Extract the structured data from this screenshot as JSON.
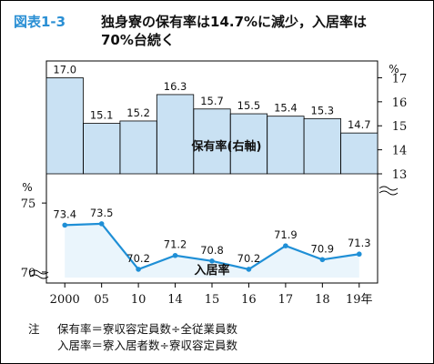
{
  "title": {
    "label": "図表1-3",
    "line1": "独身寮の保有率は14.7%に減少，入居率は",
    "line2": "70%台続く"
  },
  "chart_data": [
    {
      "type": "bar",
      "name": "保有率",
      "label": "保有率(右軸)",
      "axis": "right",
      "unit": "%",
      "ylim": [
        13,
        17.7
      ],
      "yticks": [
        13,
        14,
        15,
        16,
        17
      ],
      "categories": [
        "2000",
        "05",
        "10",
        "14",
        "15",
        "16",
        "17",
        "18",
        "19年"
      ],
      "values": [
        17.0,
        15.1,
        15.2,
        16.3,
        15.7,
        15.5,
        15.4,
        15.3,
        14.7
      ],
      "value_labels": [
        "17.0",
        "15.1",
        "15.2",
        "16.3",
        "15.7",
        "15.5",
        "15.4",
        "15.3",
        "14.7"
      ],
      "color": "#c9e1f3"
    },
    {
      "type": "line",
      "name": "入居率",
      "label": "入居率",
      "axis": "left",
      "unit": "%",
      "ylim": [
        69.6,
        75.8
      ],
      "yticks": [
        70,
        75
      ],
      "categories": [
        "2000",
        "05",
        "10",
        "14",
        "15",
        "16",
        "17",
        "18",
        "19年"
      ],
      "values": [
        73.4,
        73.5,
        70.2,
        71.2,
        70.8,
        70.2,
        71.9,
        70.9,
        71.3
      ],
      "value_labels": [
        "73.4",
        "73.5",
        "70.2",
        "71.2",
        "70.8",
        "70.2",
        "71.9",
        "70.9",
        "71.3"
      ],
      "color": "#1f8fd6",
      "fill": "#eaf5fc"
    }
  ],
  "notes": {
    "mark": "注",
    "line1": "保有率＝寮収容定員数÷全従業員数",
    "line2": "入居率＝寮入居者数÷寮収容定員数"
  },
  "colors": {
    "title_label": "#2a8fd4",
    "bar_fill": "#c9e1f3",
    "line": "#1f8fd6",
    "line_fill": "#eaf5fc"
  }
}
